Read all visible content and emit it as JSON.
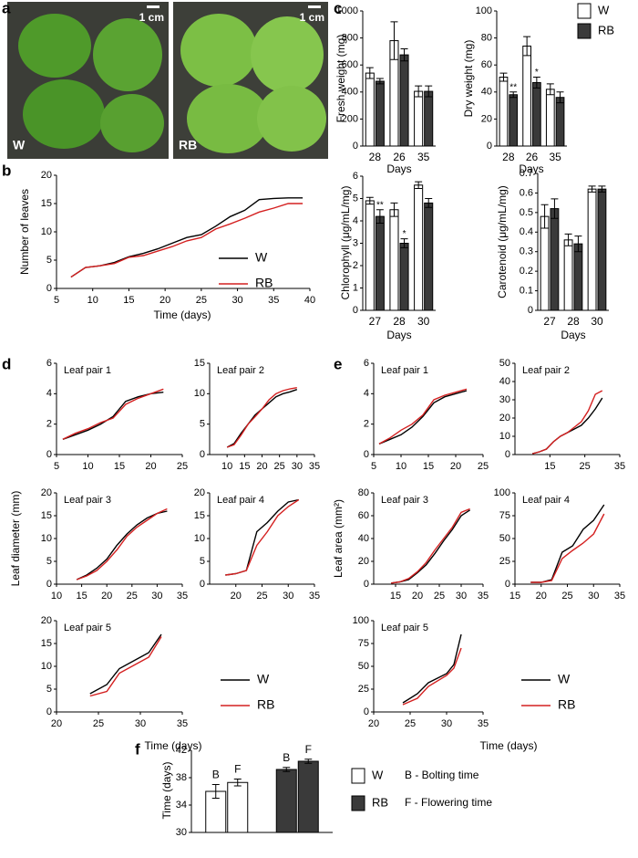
{
  "panel_labels": [
    "a",
    "b",
    "c",
    "d",
    "e",
    "f"
  ],
  "photos": [
    {
      "label": "W",
      "scale": "1 cm"
    },
    {
      "label": "RB",
      "scale": "1 cm"
    }
  ],
  "chart_data": [
    {
      "type": "line",
      "xlabel": "Time (days)",
      "ylabel": "Number of leaves",
      "x": [
        7,
        9,
        11,
        13,
        15,
        17,
        19,
        21,
        23,
        25,
        27,
        29,
        31,
        33,
        35,
        37,
        39
      ],
      "series": [
        {
          "name": "W",
          "color": "#000000",
          "values": [
            2,
            3.7,
            4,
            4.6,
            5.6,
            6.2,
            7,
            8,
            9,
            9.5,
            11,
            12.7,
            13.8,
            15.7,
            15.9,
            16,
            16
          ]
        },
        {
          "name": "RB",
          "color": "#d42020",
          "values": [
            2,
            3.7,
            4,
            4.4,
            5.5,
            5.8,
            6.6,
            7.4,
            8.4,
            9,
            10.5,
            11.4,
            12.4,
            13.5,
            14.2,
            15,
            15
          ]
        }
      ],
      "xlim": [
        5,
        40
      ],
      "xticks": [
        5,
        10,
        15,
        20,
        25,
        30,
        35,
        40
      ],
      "ylim": [
        0,
        20
      ],
      "yticks": [
        0,
        5,
        10,
        15,
        20
      ]
    },
    {
      "type": "bar",
      "xlabel": "Days",
      "ylabel": "Fresh weight (mg)",
      "categories": [
        "28",
        "26",
        "35"
      ],
      "series": [
        {
          "name": "W",
          "color": "#ffffff",
          "values": [
            540,
            780,
            405
          ],
          "errors": [
            40,
            140,
            40
          ]
        },
        {
          "name": "RB",
          "color": "#3a3a3a",
          "values": [
            480,
            675,
            405
          ],
          "errors": [
            20,
            45,
            40
          ]
        }
      ],
      "ylim": [
        0,
        1000
      ],
      "yticks": [
        0,
        200,
        400,
        600,
        800,
        1000
      ]
    },
    {
      "type": "bar",
      "xlabel": "Days",
      "ylabel": "Dry weight (mg)",
      "categories": [
        "28",
        "26",
        "35"
      ],
      "series": [
        {
          "name": "W",
          "color": "#ffffff",
          "values": [
            51,
            74,
            42
          ],
          "errors": [
            3,
            7,
            4
          ]
        },
        {
          "name": "RB",
          "color": "#3a3a3a",
          "values": [
            38,
            47,
            36
          ],
          "errors": [
            2,
            4,
            4
          ],
          "significance": [
            "**",
            "*",
            null
          ]
        }
      ],
      "ylim": [
        0,
        100
      ],
      "yticks": [
        0,
        20,
        40,
        60,
        80,
        100
      ]
    },
    {
      "type": "bar",
      "xlabel": "Days",
      "ylabel": "Chlorophyll (μg/mL/mg)",
      "categories": [
        "27",
        "28",
        "30"
      ],
      "series": [
        {
          "name": "W",
          "color": "#ffffff",
          "values": [
            4.9,
            4.5,
            5.6
          ],
          "errors": [
            0.15,
            0.3,
            0.15
          ]
        },
        {
          "name": "RB",
          "color": "#3a3a3a",
          "values": [
            4.2,
            3.0,
            4.8
          ],
          "errors": [
            0.3,
            0.2,
            0.2
          ],
          "significance": [
            "**",
            "*",
            null
          ]
        }
      ],
      "ylim": [
        0,
        6
      ],
      "yticks": [
        0,
        1,
        2,
        3,
        4,
        5,
        6
      ]
    },
    {
      "type": "bar",
      "xlabel": "Days",
      "ylabel": "Carotenoid (μg/mL/mg)",
      "categories": [
        "27",
        "28",
        "30"
      ],
      "series": [
        {
          "name": "W",
          "color": "#ffffff",
          "values": [
            0.48,
            0.36,
            0.62
          ],
          "errors": [
            0.06,
            0.03,
            0.015
          ]
        },
        {
          "name": "RB",
          "color": "#3a3a3a",
          "values": [
            0.52,
            0.34,
            0.62
          ],
          "errors": [
            0.05,
            0.04,
            0.015
          ]
        }
      ],
      "ylim": [
        0,
        0.7
      ],
      "yticks": [
        0,
        0.1,
        0.2,
        0.3,
        0.4,
        0.5,
        0.6,
        0.7
      ]
    },
    {
      "type": "line",
      "title": "Leaf pair 1",
      "x": [
        6,
        8,
        10,
        12,
        14,
        16,
        18,
        20,
        22
      ],
      "series": [
        {
          "name": "W",
          "color": "#000000",
          "values": [
            1,
            1.3,
            1.6,
            2,
            2.5,
            3.5,
            3.8,
            4,
            4.1
          ]
        },
        {
          "name": "RB",
          "color": "#d42020",
          "values": [
            1,
            1.4,
            1.7,
            2.1,
            2.4,
            3.3,
            3.7,
            4,
            4.3
          ]
        }
      ],
      "xlim": [
        5,
        25
      ],
      "xticks": [
        5,
        10,
        15,
        20,
        25
      ],
      "ylim": [
        0,
        6
      ],
      "yticks": [
        0,
        2,
        4,
        6
      ]
    },
    {
      "type": "line",
      "title": "Leaf pair 2",
      "x": [
        10,
        12,
        14,
        16,
        18,
        20,
        22,
        24,
        26,
        28,
        30
      ],
      "series": [
        {
          "name": "W",
          "color": "#000000",
          "values": [
            1.2,
            1.8,
            3.5,
            5,
            6.5,
            7.5,
            8.5,
            9.5,
            10,
            10.3,
            10.7
          ]
        },
        {
          "name": "RB",
          "color": "#d42020",
          "values": [
            1.2,
            1.6,
            3.2,
            5,
            6.2,
            7.5,
            9,
            10,
            10.5,
            10.8,
            11
          ]
        }
      ],
      "xlim": [
        5,
        35
      ],
      "xticks": [
        10,
        15,
        20,
        25,
        30,
        35
      ],
      "ylim": [
        0,
        15
      ],
      "yticks": [
        0,
        5,
        10,
        15
      ]
    },
    {
      "type": "line",
      "title": "Leaf pair 3",
      "ylabel": "Leaf diameter (mm)",
      "x": [
        14,
        16,
        18,
        20,
        22,
        24,
        26,
        28,
        30,
        32
      ],
      "series": [
        {
          "name": "W",
          "color": "#000000",
          "values": [
            1,
            2,
            3.5,
            5.5,
            8.5,
            11,
            13,
            14.5,
            15.5,
            16
          ]
        },
        {
          "name": "RB",
          "color": "#d42020",
          "values": [
            1,
            1.8,
            3,
            5,
            7.5,
            10.5,
            12.5,
            14,
            15.5,
            16.5
          ]
        }
      ],
      "xlim": [
        10,
        35
      ],
      "xticks": [
        10,
        15,
        20,
        25,
        30,
        35
      ],
      "ylim": [
        0,
        20
      ],
      "yticks": [
        0,
        5,
        10,
        15,
        20
      ]
    },
    {
      "type": "line",
      "title": "Leaf pair 4",
      "x": [
        18,
        20,
        22,
        24,
        26,
        28,
        30,
        32
      ],
      "series": [
        {
          "name": "W",
          "color": "#000000",
          "values": [
            2,
            2.3,
            3,
            11.5,
            13.5,
            16,
            18,
            18.5
          ]
        },
        {
          "name": "RB",
          "color": "#d42020",
          "values": [
            2,
            2.3,
            3,
            8.5,
            11.5,
            15,
            17,
            18.5
          ]
        }
      ],
      "xlim": [
        15,
        35
      ],
      "xticks": [
        20,
        25,
        30,
        35
      ],
      "ylim": [
        0,
        20
      ],
      "yticks": [
        0,
        5,
        10,
        15,
        20
      ]
    },
    {
      "type": "line",
      "title": "Leaf pair 5",
      "xlabel": "Time (days)",
      "x": [
        24,
        26,
        27.5,
        30,
        31,
        32.5
      ],
      "series": [
        {
          "name": "W",
          "color": "#000000",
          "values": [
            4,
            6,
            9.5,
            12,
            13,
            17
          ]
        },
        {
          "name": "RB",
          "color": "#d42020",
          "values": [
            3.5,
            4.5,
            8.5,
            11,
            12,
            16.5
          ]
        }
      ],
      "xlim": [
        20,
        35
      ],
      "xticks": [
        20,
        25,
        30,
        35
      ],
      "ylim": [
        0,
        20
      ],
      "yticks": [
        0,
        5,
        10,
        15,
        20
      ]
    },
    {
      "type": "line",
      "title": "Leaf pair 1",
      "x": [
        6,
        8,
        10,
        12,
        14,
        16,
        18,
        20,
        22
      ],
      "series": [
        {
          "name": "W",
          "color": "#000000",
          "values": [
            0.7,
            1,
            1.3,
            1.8,
            2.5,
            3.4,
            3.8,
            4,
            4.2
          ]
        },
        {
          "name": "RB",
          "color": "#d42020",
          "values": [
            0.7,
            1.1,
            1.6,
            2,
            2.6,
            3.6,
            3.9,
            4.1,
            4.3
          ]
        }
      ],
      "xlim": [
        5,
        25
      ],
      "xticks": [
        5,
        10,
        15,
        20,
        25
      ],
      "ylim": [
        0,
        6
      ],
      "yticks": [
        0,
        2,
        4,
        6
      ]
    },
    {
      "type": "line",
      "title": "Leaf pair 2",
      "x": [
        10,
        12,
        14,
        16,
        18,
        20,
        22,
        24,
        26,
        28,
        30
      ],
      "series": [
        {
          "name": "W",
          "color": "#000000",
          "values": [
            0.5,
            1.5,
            3,
            7,
            10,
            12,
            14,
            16,
            20,
            25,
            31
          ]
        },
        {
          "name": "RB",
          "color": "#d42020",
          "values": [
            0.5,
            1.5,
            3,
            7,
            10,
            12,
            15,
            18,
            24,
            33,
            35
          ]
        }
      ],
      "xlim": [
        5,
        35
      ],
      "xticks": [
        15,
        25,
        35
      ],
      "ylim": [
        0,
        50
      ],
      "yticks": [
        0,
        10,
        20,
        30,
        40,
        50
      ]
    },
    {
      "type": "line",
      "title": "Leaf pair 3",
      "ylabel": "Leaf area (mm²)",
      "x": [
        14,
        16,
        18,
        20,
        22,
        24,
        26,
        28,
        30,
        32
      ],
      "series": [
        {
          "name": "W",
          "color": "#000000",
          "values": [
            1,
            2,
            4,
            10,
            17,
            27,
            38,
            48,
            60,
            65
          ]
        },
        {
          "name": "RB",
          "color": "#d42020",
          "values": [
            1,
            2,
            5,
            11,
            19,
            30,
            40,
            50,
            63,
            66
          ]
        }
      ],
      "xlim": [
        10,
        35
      ],
      "xticks": [
        15,
        20,
        25,
        30,
        35
      ],
      "ylim": [
        0,
        80
      ],
      "yticks": [
        0,
        20,
        40,
        60,
        80
      ]
    },
    {
      "type": "line",
      "title": "Leaf pair 4",
      "x": [
        18,
        20,
        22,
        24,
        26,
        28,
        30,
        32
      ],
      "series": [
        {
          "name": "W",
          "color": "#000000",
          "values": [
            2,
            2,
            5,
            35,
            42,
            60,
            70,
            87
          ]
        },
        {
          "name": "RB",
          "color": "#d42020",
          "values": [
            2,
            2,
            4,
            28,
            37,
            45,
            55,
            77
          ]
        }
      ],
      "xlim": [
        15,
        35
      ],
      "xticks": [
        15,
        20,
        25,
        30,
        35
      ],
      "ylim": [
        0,
        100
      ],
      "yticks": [
        0,
        25,
        50,
        75,
        100
      ]
    },
    {
      "type": "line",
      "title": "Leaf pair 5",
      "xlabel": "Time (days)",
      "x": [
        24,
        26,
        27.5,
        30,
        31,
        32
      ],
      "series": [
        {
          "name": "W",
          "color": "#000000",
          "values": [
            10,
            20,
            32,
            42,
            52,
            85
          ]
        },
        {
          "name": "RB",
          "color": "#d42020",
          "values": [
            8,
            15,
            28,
            40,
            48,
            70
          ]
        }
      ],
      "xlim": [
        20,
        35
      ],
      "xticks": [
        20,
        25,
        30,
        35
      ],
      "ylim": [
        0,
        100
      ],
      "yticks": [
        0,
        25,
        50,
        75,
        100
      ]
    },
    {
      "type": "bar",
      "ylabel": "Time (days)",
      "categories": [
        "B",
        "F"
      ],
      "notes": [
        "B - Bolting time",
        "F - Flowering time"
      ],
      "series": [
        {
          "name": "W",
          "color": "#ffffff",
          "values": [
            36,
            37.3
          ],
          "errors": [
            1,
            0.5
          ]
        },
        {
          "name": "RB",
          "color": "#3a3a3a",
          "values": [
            39.2,
            40.4
          ],
          "errors": [
            0.3,
            0.3
          ]
        }
      ],
      "ylim": [
        30,
        42
      ],
      "yticks": [
        30,
        34,
        38,
        42
      ]
    }
  ]
}
